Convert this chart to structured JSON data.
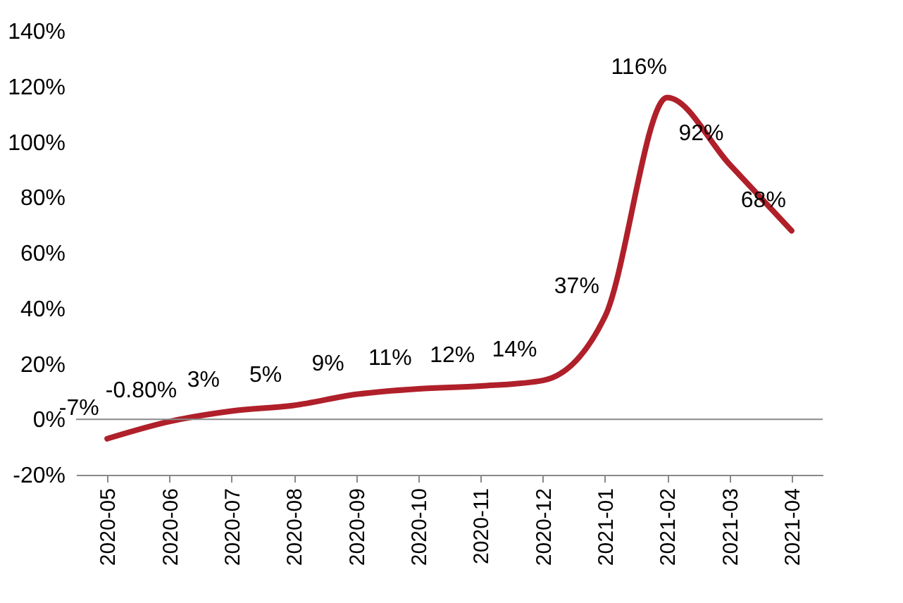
{
  "chart_data": {
    "type": "line",
    "categories": [
      "2020-05",
      "2020-06",
      "2020-07",
      "2020-08",
      "2020-09",
      "2020-10",
      "2020-11",
      "2020-12",
      "2021-01",
      "2021-02",
      "2021-03",
      "2021-04"
    ],
    "series": [
      {
        "color": "#b0202a",
        "values": [
          -7,
          -0.8,
          3,
          5,
          9,
          11,
          12,
          14,
          37,
          116,
          92,
          68
        ],
        "value_labels": [
          "-7%",
          "-0.80%",
          "3%",
          "5%",
          "9%",
          "11%",
          "12%",
          "14%",
          "37%",
          "116%",
          "92%",
          "68%"
        ]
      }
    ],
    "ylim": [
      -20,
      140
    ],
    "yticks": [
      {
        "value": -20,
        "label": "-20%"
      },
      {
        "value": 0,
        "label": "0%"
      },
      {
        "value": 20,
        "label": "20%"
      },
      {
        "value": 40,
        "label": "40%"
      },
      {
        "value": 60,
        "label": "60%"
      },
      {
        "value": 80,
        "label": "80%"
      },
      {
        "value": 100,
        "label": "100%"
      },
      {
        "value": 120,
        "label": "120%"
      },
      {
        "value": 140,
        "label": "140%"
      }
    ],
    "ref_lines": [
      {
        "axis": "y",
        "value": 0,
        "color": "#888888"
      }
    ],
    "grid": false,
    "legend": false,
    "marker": "none",
    "line_style": "solid"
  }
}
